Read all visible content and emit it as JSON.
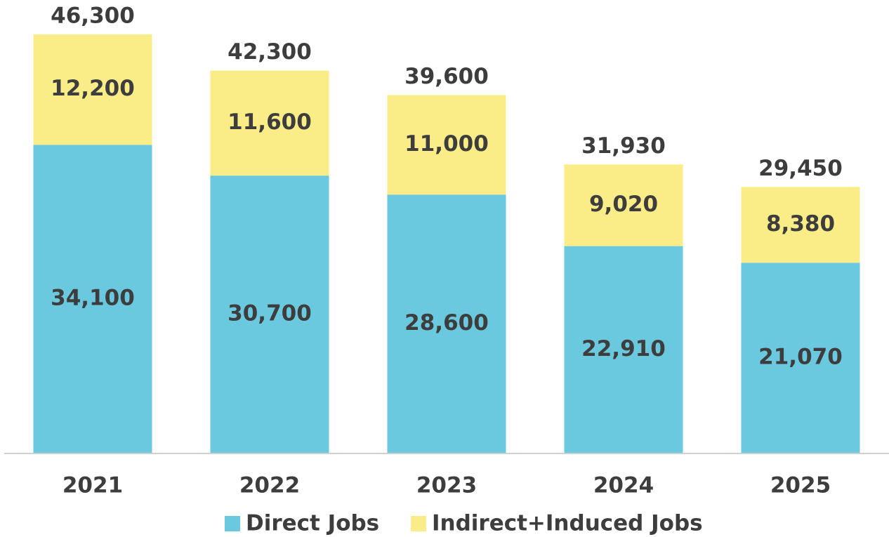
{
  "chart_data": {
    "type": "stacked_bar",
    "categories": [
      "2021",
      "2022",
      "2023",
      "2024",
      "2025"
    ],
    "series": [
      {
        "name": "Direct Jobs",
        "color": "#6ac8df",
        "values": [
          34100,
          30700,
          28600,
          22910,
          21070
        ],
        "value_labels": [
          "34,100",
          "30,700",
          "28,600",
          "22,910",
          "21,070"
        ]
      },
      {
        "name": "Indirect+Induced Jobs",
        "color": "#faed87",
        "values": [
          12200,
          11600,
          11000,
          9020,
          8380
        ],
        "value_labels": [
          "12,200",
          "11,600",
          "11,000",
          "9,020",
          "8,380"
        ]
      }
    ],
    "totals": [
      46300,
      42300,
      39600,
      31930,
      29450
    ],
    "total_labels": [
      "46,300",
      "42,300",
      "39,600",
      "31,930",
      "29,450"
    ],
    "legend": "bottom"
  }
}
